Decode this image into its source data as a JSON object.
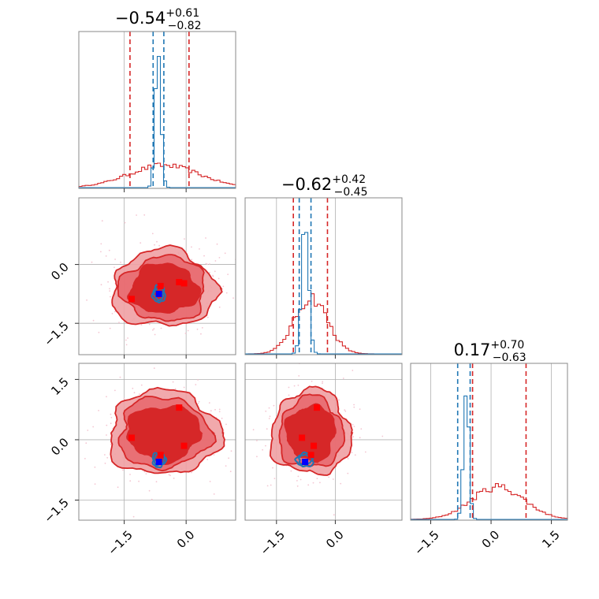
{
  "chart_data": {
    "type": "corner",
    "colors": {
      "red": "#d62728",
      "red_light": "#f0a0a3",
      "red_mid": "#e8696f",
      "blue": "#1f77b4",
      "blue_marker": "#0000ff",
      "red_marker": "#ff0000",
      "scatter": "#f4c6d2"
    },
    "ranges": [
      [
        -2.6,
        1.2
      ],
      [
        -2.3,
        1.7
      ],
      [
        -2.0,
        1.9
      ]
    ],
    "ticks": [
      {
        "values": [
          -1.5,
          0.0
        ],
        "labels": [
          "−1.5",
          "0.0"
        ]
      },
      {
        "values": [
          0.0,
          -1.5
        ],
        "labels": [
          "0.0",
          "−1.5"
        ]
      },
      {
        "values": [
          -1.5,
          0.0,
          1.5
        ],
        "labels": [
          "−1.5",
          "0.0",
          "1.5"
        ]
      }
    ],
    "row_ticks": [
      {
        "values": [
          0.0,
          -1.5
        ],
        "labels": [
          "0.0",
          "−1.5"
        ]
      },
      {
        "values": [
          1.5,
          0.0,
          -1.5
        ],
        "labels": [
          "1.5",
          "0.0",
          "−1.5"
        ]
      }
    ],
    "titles": [
      {
        "value": "−0.54",
        "plus": "+0.61",
        "minus": "−0.82"
      },
      {
        "value": "−0.62",
        "plus": "+0.42",
        "minus": "−0.45"
      },
      {
        "value": "0.17",
        "plus": "+0.70",
        "minus": "−0.63"
      }
    ],
    "diagonal": [
      {
        "red_lines": [
          -1.36,
          0.07
        ],
        "blue_lines": [
          -0.8,
          -0.54
        ],
        "red_hist": {
          "center": -0.54,
          "sigma": 0.85,
          "peak": 0.15
        },
        "blue_hist": {
          "center": -0.68,
          "sigma": 0.07,
          "peak": 0.9
        }
      },
      {
        "red_lines": [
          -1.07,
          -0.2
        ],
        "blue_lines": [
          -0.92,
          -0.62
        ],
        "red_hist": {
          "center": -0.62,
          "sigma": 0.42,
          "peak": 0.38
        },
        "blue_hist": {
          "center": -0.77,
          "sigma": 0.09,
          "peak": 0.9
        }
      },
      {
        "red_lines": [
          -0.46,
          0.87
        ],
        "blue_lines": [
          -0.83,
          -0.52
        ],
        "red_hist": {
          "center": 0.17,
          "sigma": 0.65,
          "peak": 0.22
        },
        "blue_hist": {
          "center": -0.62,
          "sigma": 0.07,
          "peak": 0.9
        }
      }
    ],
    "panels_2d": [
      {
        "row": 1,
        "col": 0,
        "contour_center": [
          -0.54,
          -0.62
        ],
        "contour_radii": [
          [
            1.27,
            0.98
          ],
          [
            1.03,
            0.82
          ],
          [
            0.82,
            0.62
          ]
        ],
        "blue_center": [
          -0.66,
          -0.75
        ],
        "blue_radii": [
          [
            0.15,
            0.22
          ],
          [
            0.11,
            0.15
          ]
        ],
        "blue_marker": [
          -0.66,
          -0.75
        ],
        "red_markers": [
          [
            -1.32,
            -0.88
          ],
          [
            -0.62,
            -0.55
          ],
          [
            -0.17,
            -0.45
          ],
          [
            -0.05,
            -0.48
          ]
        ]
      },
      {
        "row": 2,
        "col": 0,
        "contour_center": [
          -0.54,
          0.17
        ],
        "contour_radii": [
          [
            1.35,
            1.05
          ],
          [
            1.1,
            0.88
          ],
          [
            0.88,
            0.68
          ]
        ],
        "blue_center": [
          -0.66,
          -0.5
        ],
        "blue_radii": [
          [
            0.16,
            0.18
          ],
          [
            0.12,
            0.13
          ]
        ],
        "blue_marker": [
          -0.66,
          -0.55
        ],
        "red_markers": [
          [
            -1.32,
            0.05
          ],
          [
            -0.62,
            -0.38
          ],
          [
            -0.17,
            0.8
          ],
          [
            -0.05,
            -0.15
          ]
        ]
      },
      {
        "row": 2,
        "col": 1,
        "contour_center": [
          -0.62,
          0.17
        ],
        "contour_radii": [
          [
            1.02,
            1.05
          ],
          [
            0.82,
            0.88
          ],
          [
            0.62,
            0.68
          ]
        ],
        "blue_center": [
          -0.77,
          -0.5
        ],
        "blue_radii": [
          [
            0.22,
            0.17
          ],
          [
            0.16,
            0.12
          ]
        ],
        "blue_marker": [
          -0.77,
          -0.55
        ],
        "red_markers": [
          [
            -0.85,
            0.05
          ],
          [
            -0.62,
            -0.38
          ],
          [
            -0.47,
            0.8
          ],
          [
            -0.55,
            -0.15
          ]
        ]
      }
    ]
  }
}
